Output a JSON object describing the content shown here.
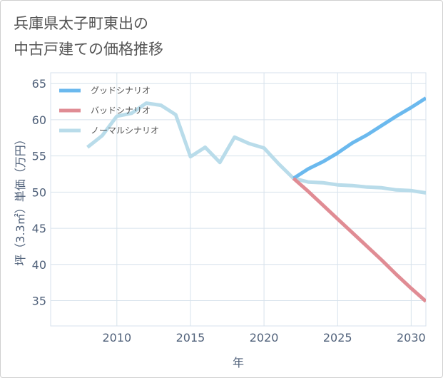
{
  "page_title_lines": [
    "兵庫県太子町東出の",
    "中古戸建ての価格推移"
  ],
  "colors": {
    "good": "#6bb9ee",
    "bad": "#e08c94",
    "normal": "#b9dcea",
    "grid": "#d7e2ec",
    "axis_text": "#50617a"
  },
  "chart_data": {
    "type": "line",
    "title": "兵庫県太子町東出の中古戸建ての価格推移",
    "xlabel": "年",
    "ylabel": "坪（3.3㎡）単価（万円）",
    "xlim": [
      2005.5,
      2031
    ],
    "ylim": [
      31.5,
      66.5
    ],
    "x_ticks": [
      2010,
      2015,
      2020,
      2025,
      2030
    ],
    "y_ticks": [
      35,
      40,
      45,
      50,
      55,
      60,
      65
    ],
    "legend_position": "top-left",
    "series": [
      {
        "name": "グッドシナリオ",
        "color_key": "good",
        "x": [
          2022,
          2023,
          2024,
          2025,
          2026,
          2027,
          2028,
          2029,
          2030,
          2031
        ],
        "y": [
          51.9,
          53.2,
          54.2,
          55.4,
          56.8,
          57.9,
          59.2,
          60.5,
          61.7,
          63.0
        ]
      },
      {
        "name": "バッドシナリオ",
        "color_key": "bad",
        "x": [
          2022,
          2023,
          2024,
          2025,
          2026,
          2027,
          2028,
          2029,
          2030,
          2031
        ],
        "y": [
          51.9,
          50.1,
          48.2,
          46.3,
          44.4,
          42.5,
          40.6,
          38.6,
          36.7,
          34.9
        ]
      },
      {
        "name": "ノーマルシナリオ",
        "color_key": "normal",
        "x": [
          2008,
          2009,
          2010,
          2011,
          2012,
          2013,
          2014,
          2015,
          2016,
          2017,
          2018,
          2019,
          2020,
          2021,
          2022,
          2023,
          2024,
          2025,
          2026,
          2027,
          2028,
          2029,
          2030,
          2031
        ],
        "y": [
          56.2,
          57.8,
          60.5,
          60.9,
          62.3,
          62.0,
          60.7,
          54.9,
          56.2,
          54.1,
          57.6,
          56.7,
          56.1,
          53.9,
          51.9,
          51.4,
          51.3,
          51.0,
          50.9,
          50.7,
          50.6,
          50.3,
          50.2,
          49.9
        ]
      }
    ]
  }
}
